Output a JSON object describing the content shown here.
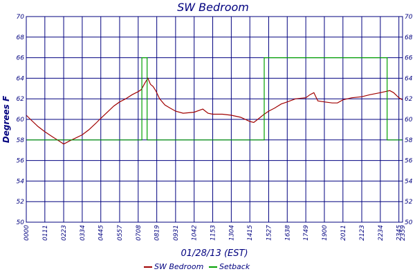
{
  "chart_data": {
    "type": "line",
    "title": "SW Bedroom",
    "xlabel": "01/28/13 (EST)",
    "ylabel": "Degrees F",
    "ylim": [
      50,
      70
    ],
    "yticks": [
      50,
      52,
      54,
      56,
      58,
      60,
      62,
      64,
      66,
      68,
      70
    ],
    "x_range": [
      "00:00",
      "23:59"
    ],
    "xticks": [
      "00:00",
      "01:11",
      "02:23",
      "03:34",
      "04:45",
      "05:57",
      "07:08",
      "08:19",
      "09:31",
      "10:42",
      "11:53",
      "13:04",
      "14:15",
      "15:27",
      "16:38",
      "17:49",
      "19:00",
      "20:11",
      "21:23",
      "22:34",
      "23:45",
      "23:59"
    ],
    "grid": true,
    "legend_position": "bottom",
    "series": [
      {
        "name": "SW Bedroom",
        "color": "#a00000",
        "points": [
          [
            "00:00",
            60.4
          ],
          [
            "00:20",
            59.9
          ],
          [
            "00:45",
            59.3
          ],
          [
            "01:11",
            58.8
          ],
          [
            "01:40",
            58.3
          ],
          [
            "02:05",
            57.9
          ],
          [
            "02:23",
            57.6
          ],
          [
            "02:45",
            57.9
          ],
          [
            "03:10",
            58.2
          ],
          [
            "03:34",
            58.5
          ],
          [
            "04:00",
            59.0
          ],
          [
            "04:25",
            59.6
          ],
          [
            "04:45",
            60.1
          ],
          [
            "05:10",
            60.7
          ],
          [
            "05:35",
            61.3
          ],
          [
            "05:57",
            61.7
          ],
          [
            "06:20",
            62.0
          ],
          [
            "06:45",
            62.4
          ],
          [
            "07:08",
            62.7
          ],
          [
            "07:20",
            62.9
          ],
          [
            "07:35",
            63.6
          ],
          [
            "07:45",
            64.0
          ],
          [
            "07:55",
            63.4
          ],
          [
            "08:05",
            63.2
          ],
          [
            "08:15",
            62.8
          ],
          [
            "08:30",
            62.0
          ],
          [
            "08:50",
            61.4
          ],
          [
            "09:10",
            61.1
          ],
          [
            "09:31",
            60.8
          ],
          [
            "10:00",
            60.6
          ],
          [
            "10:42",
            60.7
          ],
          [
            "11:15",
            61.0
          ],
          [
            "11:35",
            60.6
          ],
          [
            "11:53",
            60.5
          ],
          [
            "12:30",
            60.5
          ],
          [
            "13:04",
            60.4
          ],
          [
            "13:40",
            60.2
          ],
          [
            "14:15",
            59.8
          ],
          [
            "14:30",
            59.7
          ],
          [
            "14:50",
            60.1
          ],
          [
            "15:10",
            60.5
          ],
          [
            "15:27",
            60.8
          ],
          [
            "15:50",
            61.1
          ],
          [
            "16:15",
            61.5
          ],
          [
            "16:38",
            61.7
          ],
          [
            "17:10",
            62.0
          ],
          [
            "17:49",
            62.1
          ],
          [
            "18:05",
            62.4
          ],
          [
            "18:20",
            62.6
          ],
          [
            "18:35",
            61.8
          ],
          [
            "19:00",
            61.7
          ],
          [
            "19:30",
            61.6
          ],
          [
            "19:50",
            61.6
          ],
          [
            "20:11",
            61.9
          ],
          [
            "20:45",
            62.1
          ],
          [
            "21:23",
            62.2
          ],
          [
            "21:55",
            62.4
          ],
          [
            "22:34",
            62.6
          ],
          [
            "23:10",
            62.8
          ],
          [
            "23:25",
            62.6
          ],
          [
            "23:45",
            62.1
          ],
          [
            "23:59",
            61.9
          ]
        ]
      },
      {
        "name": "Setback",
        "color": "#00a000",
        "points": [
          [
            "00:00",
            58
          ],
          [
            "07:22",
            58
          ],
          [
            "07:22",
            66
          ],
          [
            "07:42",
            66
          ],
          [
            "07:42",
            58
          ],
          [
            "15:10",
            58
          ],
          [
            "15:10",
            66
          ],
          [
            "23:00",
            66
          ],
          [
            "23:00",
            58
          ],
          [
            "23:59",
            58
          ]
        ]
      }
    ]
  }
}
